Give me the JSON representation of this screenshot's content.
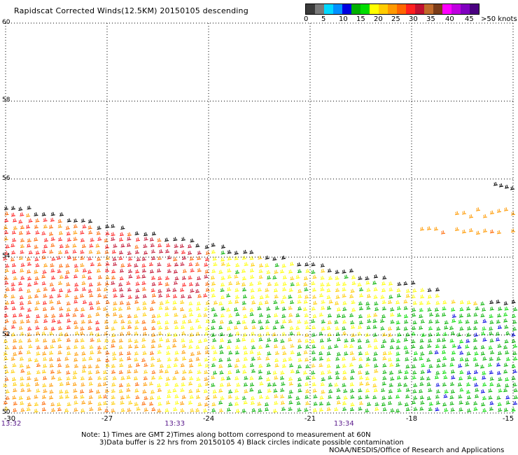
{
  "title": "Rapidscat Corrected Winds(12.5KM) 20150105 descending",
  "colorbar": {
    "colors": [
      "#3a3a3a",
      "#7a7a7a",
      "#00d8ff",
      "#0090ff",
      "#0000e0",
      "#00b000",
      "#00dd00",
      "#ffff00",
      "#ffcc00",
      "#ff9900",
      "#ff6600",
      "#ff2020",
      "#c01030",
      "#c06a2a",
      "#7a3b18",
      "#ff00ff",
      "#c000e0",
      "#8000c0",
      "#4a0080"
    ],
    "labels": [
      "0",
      "5",
      "10",
      "15",
      "20",
      "25",
      "30",
      "35",
      "40",
      "45",
      ">50 knots"
    ]
  },
  "chart_data": {
    "type": "wind-barbs",
    "title": "Rapidscat Corrected Winds(12.5KM) 20150105 descending",
    "x_ticks": [
      "-30",
      "-27",
      "-24",
      "-21",
      "-18",
      "-15"
    ],
    "y_ticks": [
      "60",
      "58",
      "56",
      "54",
      "52",
      "50"
    ],
    "xlim": [
      -30,
      -15
    ],
    "ylim": [
      50,
      60
    ],
    "grid": true,
    "time_labels": [
      {
        "lon": -30,
        "text": "13:32"
      },
      {
        "lon": -25,
        "text": "13:33"
      },
      {
        "lon": -20,
        "text": "13:34"
      }
    ],
    "speed_classes_knots": [
      "0-5",
      "5-10",
      "10-15",
      "15-20",
      "20-25",
      "25-30",
      "30-35",
      "35-40",
      "40-45",
      "45-50",
      ">50"
    ]
  },
  "notes": {
    "line1": "Note: 1) Times are GMT 2)Times along bottom correspond to measurement at 60N",
    "line2": "3)Data buffer is 22 hrs from 20150105 4) Black circles indicate possible contamination",
    "line3": "NOAA/NESDIS/Office of Research and Applications"
  }
}
